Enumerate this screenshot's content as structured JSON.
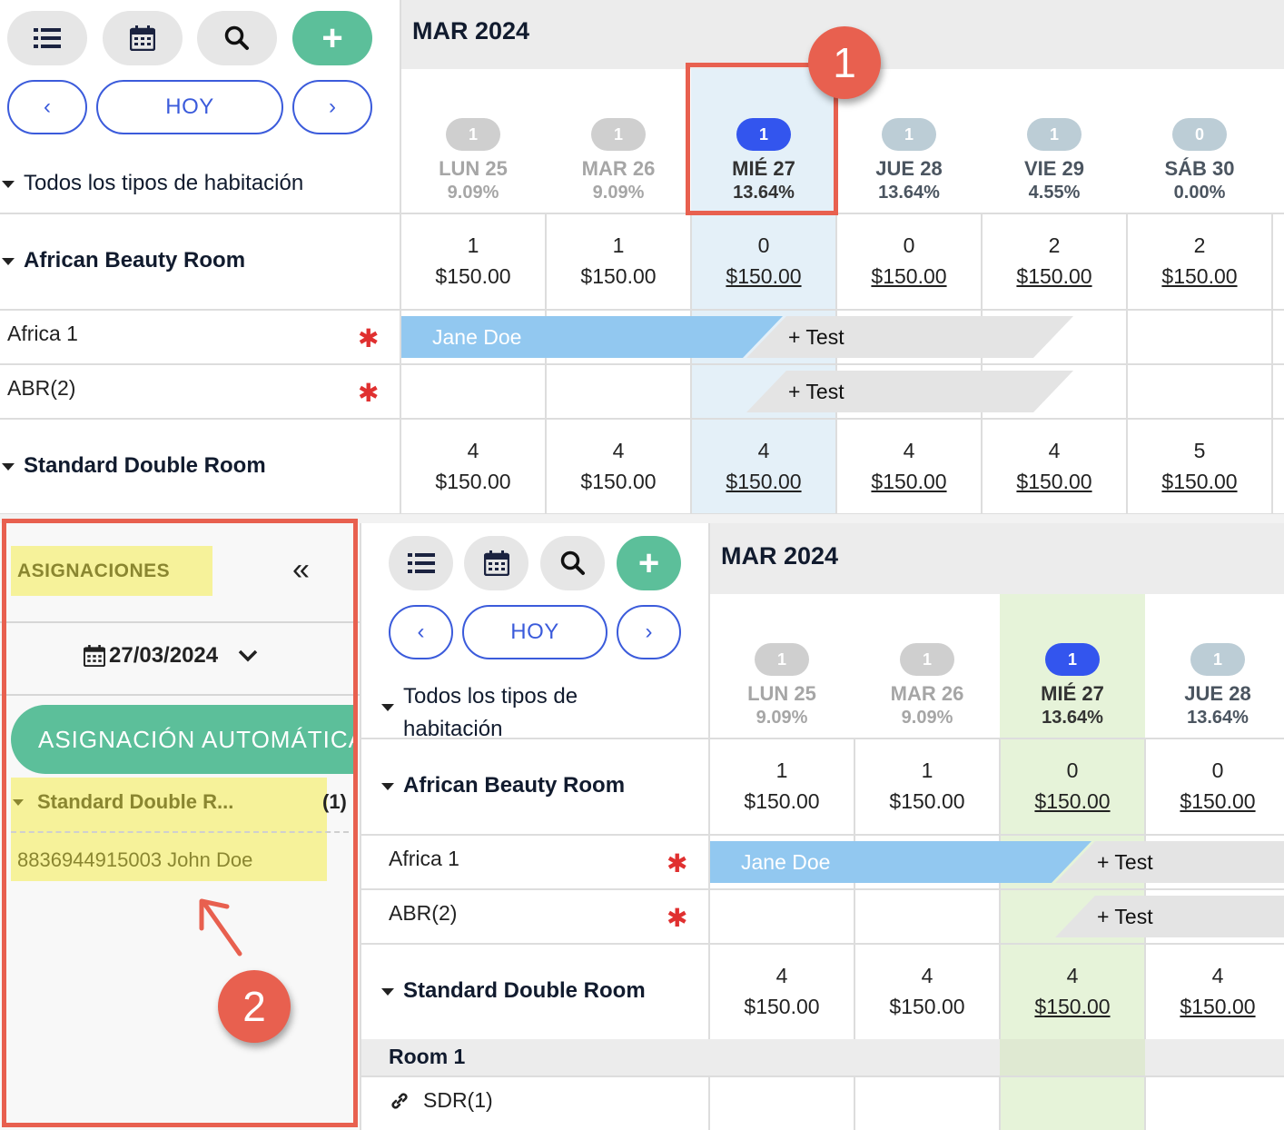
{
  "top": {
    "toolbar": {
      "list_icon": "list-icon",
      "calendar_icon": "calendar-icon",
      "search_icon": "search-icon",
      "add_label": "+"
    },
    "nav": {
      "prev": "‹",
      "today": "HOY",
      "next": "›"
    },
    "month": "MAR 2024",
    "room_types_filter": "Todos los tipos de habitación",
    "days": [
      {
        "count": "1",
        "name": "LUN 25",
        "pct": "9.09%"
      },
      {
        "count": "1",
        "name": "MAR 26",
        "pct": "9.09%"
      },
      {
        "count": "1",
        "name": "MIÉ 27",
        "pct": "13.64%"
      },
      {
        "count": "1",
        "name": "JUE 28",
        "pct": "13.64%"
      },
      {
        "count": "1",
        "name": "VIE 29",
        "pct": "4.55%"
      },
      {
        "count": "0",
        "name": "SÁB 30",
        "pct": "0.00%"
      }
    ],
    "room_types": [
      {
        "name": "African Beauty Room",
        "avail": [
          "1",
          "1",
          "0",
          "0",
          "2",
          "2"
        ],
        "price": [
          "$150.00",
          "$150.00",
          "$150.00",
          "$150.00",
          "$150.00",
          "$150.00"
        ]
      },
      {
        "name": "Standard Double Room",
        "avail": [
          "4",
          "4",
          "4",
          "4",
          "4",
          "5"
        ],
        "price": [
          "$150.00",
          "$150.00",
          "$150.00",
          "$150.00",
          "$150.00",
          "$150.00"
        ]
      }
    ],
    "rooms": [
      {
        "name": "Africa 1"
      },
      {
        "name": "ABR(2)"
      }
    ],
    "bookings": {
      "jane": "Jane Doe",
      "test1": "+ Test",
      "test2": "+ Test"
    },
    "callout": "1"
  },
  "sidebar": {
    "title": "ASIGNACIONES",
    "collapse": "«",
    "date": "27/03/2024",
    "auto_assign": "ASIGNACIÓN AUTOMÁTICA",
    "group": {
      "name": "Standard Double R...",
      "count": "(1)"
    },
    "item": "8836944915003 John Doe",
    "callout": "2"
  },
  "bottom": {
    "nav": {
      "prev": "‹",
      "today": "HOY",
      "next": "›"
    },
    "add_label": "+",
    "month": "MAR 2024",
    "room_types_filter_1": "Todos los tipos de",
    "room_types_filter_2": "habitación",
    "days": [
      {
        "count": "1",
        "name": "LUN 25",
        "pct": "9.09%"
      },
      {
        "count": "1",
        "name": "MAR 26",
        "pct": "9.09%"
      },
      {
        "count": "1",
        "name": "MIÉ 27",
        "pct": "13.64%"
      },
      {
        "count": "1",
        "name": "JUE 28",
        "pct": "13.64%"
      }
    ],
    "room_types": [
      {
        "name": "African Beauty Room",
        "avail": [
          "1",
          "1",
          "0",
          "0"
        ],
        "price": [
          "$150.00",
          "$150.00",
          "$150.00",
          "$150.00"
        ]
      },
      {
        "name": "Standard Double Room",
        "avail": [
          "4",
          "4",
          "4",
          "4"
        ],
        "price": [
          "$150.00",
          "$150.00",
          "$150.00",
          "$150.00"
        ]
      }
    ],
    "rooms": [
      {
        "name": "Africa 1"
      },
      {
        "name": "ABR(2)"
      }
    ],
    "bookings": {
      "jane": "Jane Doe",
      "test1": "+ Test",
      "test2": "+ Test"
    },
    "room1_label": "Room 1",
    "sdr_label": "SDR(1)"
  }
}
